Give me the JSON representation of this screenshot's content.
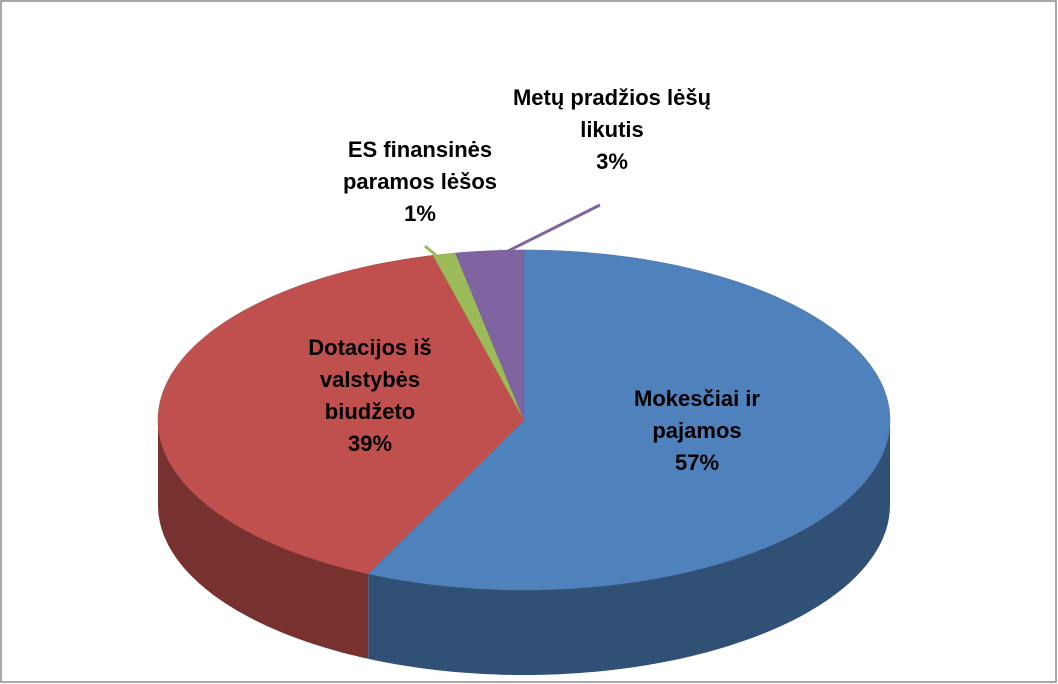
{
  "chart_data": {
    "type": "pie",
    "categories": [
      "Mokesčiai ir pajamos",
      "Dotacijos iš valstybės biudžeto",
      "ES finansinės paramos lėšos",
      "Metų pradžios lėšų likutis"
    ],
    "values": [
      57,
      39,
      1,
      3
    ],
    "value_labels": [
      "57%",
      "39%",
      "1%",
      "3%"
    ],
    "colors": [
      "#4f81bd",
      "#c0504d",
      "#9bbb59",
      "#8064a2"
    ]
  }
}
